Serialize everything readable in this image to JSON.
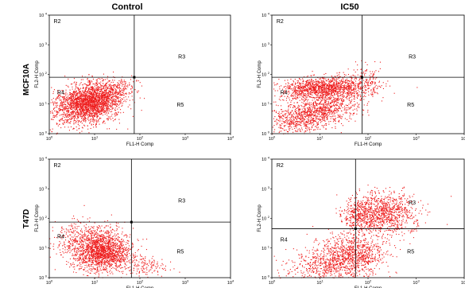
{
  "column_titles": [
    "Control",
    "IC50"
  ],
  "row_labels": [
    "MCF10A",
    "T47D"
  ],
  "chart_data": [
    {
      "type": "scatter",
      "row": "MCF10A",
      "column": "Control",
      "xlabel": "FL1-H Comp",
      "ylabel": "FL2-H Comp",
      "x_scale": "log",
      "y_scale": "log",
      "xlim": [
        1,
        10000
      ],
      "ylim": [
        1,
        10000
      ],
      "x_ticks": [
        {
          "value": 1,
          "base": "10",
          "exp": "0"
        },
        {
          "value": 10,
          "base": "10",
          "exp": "1"
        },
        {
          "value": 100,
          "base": "10",
          "exp": "2"
        },
        {
          "value": 1000,
          "base": "10",
          "exp": "3"
        },
        {
          "value": 10000,
          "base": "10",
          "exp": "4"
        }
      ],
      "y_ticks": [
        {
          "value": 1,
          "base": "10",
          "exp": "0"
        },
        {
          "value": 10,
          "base": "10",
          "exp": "1"
        },
        {
          "value": 100,
          "base": "10",
          "exp": "2"
        },
        {
          "value": 1000,
          "base": "10",
          "exp": "3"
        },
        {
          "value": 10000,
          "base": "10",
          "exp": "4"
        }
      ],
      "gate": {
        "x": 75,
        "y": 80
      },
      "regions": [
        {
          "label": "R2",
          "x": 1.25,
          "y": 6500
        },
        {
          "label": "R3",
          "x": 700,
          "y": 420
        },
        {
          "label": "R4",
          "x": 1.5,
          "y": 26
        },
        {
          "label": "R5",
          "x": 650,
          "y": 10
        }
      ],
      "clusters": [
        {
          "count": 1700,
          "cx": 8,
          "cy": 12,
          "sx": 0.35,
          "sy": 0.3,
          "rot": 0.9
        },
        {
          "count": 700,
          "cx": 4,
          "cy": 8,
          "sx": 0.45,
          "sy": 0.3,
          "rot": 0.4
        },
        {
          "count": 250,
          "cx": 25,
          "cy": 30,
          "sx": 0.25,
          "sy": 0.2,
          "rot": 0.6
        }
      ],
      "point_color": "#ee1c1c"
    },
    {
      "type": "scatter",
      "row": "MCF10A",
      "column": "IC50",
      "xlabel": "FL1-H Comp",
      "ylabel": "FL2-H Comp",
      "x_scale": "log",
      "y_scale": "log",
      "xlim": [
        1,
        10000
      ],
      "ylim": [
        1,
        10000
      ],
      "x_ticks": [
        {
          "value": 1,
          "base": "10",
          "exp": "0"
        },
        {
          "value": 10,
          "base": "10",
          "exp": "1"
        },
        {
          "value": 100,
          "base": "10",
          "exp": "2"
        },
        {
          "value": 1000,
          "base": "10",
          "exp": "3"
        },
        {
          "value": 10000,
          "base": "10",
          "exp": "4"
        }
      ],
      "y_ticks": [
        {
          "value": 1,
          "base": "10",
          "exp": "0"
        },
        {
          "value": 10,
          "base": "10",
          "exp": "1"
        },
        {
          "value": 100,
          "base": "10",
          "exp": "2"
        },
        {
          "value": 1000,
          "base": "10",
          "exp": "3"
        },
        {
          "value": 10000,
          "base": "10",
          "exp": "4"
        }
      ],
      "gate": {
        "x": 75,
        "y": 80
      },
      "regions": [
        {
          "label": "R2",
          "x": 1.25,
          "y": 6500
        },
        {
          "label": "R3",
          "x": 700,
          "y": 420
        },
        {
          "label": "R4",
          "x": 1.5,
          "y": 26
        },
        {
          "label": "R5",
          "x": 650,
          "y": 10
        }
      ],
      "clusters": [
        {
          "count": 1300,
          "cx": 12,
          "cy": 35,
          "sx": 0.45,
          "sy": 0.18,
          "rot": 0.1
        },
        {
          "count": 900,
          "cx": 10,
          "cy": 6,
          "sx": 0.45,
          "sy": 0.25,
          "rot": 0.5
        },
        {
          "count": 300,
          "cx": 3,
          "cy": 3,
          "sx": 0.3,
          "sy": 0.25,
          "rot": 0.3
        },
        {
          "count": 150,
          "cx": 90,
          "cy": 50,
          "sx": 0.2,
          "sy": 0.3,
          "rot": 0.0
        }
      ],
      "point_color": "#ee1c1c"
    },
    {
      "type": "scatter",
      "row": "T47D",
      "column": "Control",
      "xlabel": "FL1-H Comp",
      "ylabel": "FL2-H Comp",
      "x_scale": "log",
      "y_scale": "log",
      "xlim": [
        1,
        10000
      ],
      "ylim": [
        1,
        10000
      ],
      "x_ticks": [
        {
          "value": 1,
          "base": "10",
          "exp": "0"
        },
        {
          "value": 10,
          "base": "10",
          "exp": "1"
        },
        {
          "value": 100,
          "base": "10",
          "exp": "2"
        },
        {
          "value": 1000,
          "base": "10",
          "exp": "3"
        },
        {
          "value": 10000,
          "base": "10",
          "exp": "4"
        }
      ],
      "y_ticks": [
        {
          "value": 1,
          "base": "10",
          "exp": "0"
        },
        {
          "value": 10,
          "base": "10",
          "exp": "1"
        },
        {
          "value": 100,
          "base": "10",
          "exp": "2"
        },
        {
          "value": 1000,
          "base": "10",
          "exp": "3"
        },
        {
          "value": 10000,
          "base": "10",
          "exp": "4"
        }
      ],
      "gate": {
        "x": 65,
        "y": 75
      },
      "regions": [
        {
          "label": "R2",
          "x": 1.25,
          "y": 6500
        },
        {
          "label": "R3",
          "x": 700,
          "y": 420
        },
        {
          "label": "R4",
          "x": 1.5,
          "y": 26
        },
        {
          "label": "R5",
          "x": 650,
          "y": 8
        }
      ],
      "clusters": [
        {
          "count": 1500,
          "cx": 15,
          "cy": 7,
          "sx": 0.3,
          "sy": 0.3,
          "rot": 0.9
        },
        {
          "count": 500,
          "cx": 6,
          "cy": 20,
          "sx": 0.4,
          "sy": 0.35,
          "rot": 0.6
        },
        {
          "count": 150,
          "cx": 110,
          "cy": 2.5,
          "sx": 0.25,
          "sy": 0.2,
          "rot": 0.0
        }
      ],
      "point_color": "#ee1c1c"
    },
    {
      "type": "scatter",
      "row": "T47D",
      "column": "IC50",
      "xlabel": "FL1-H Comp",
      "ylabel": "FL2-H Comp",
      "x_scale": "log",
      "y_scale": "log",
      "xlim": [
        1,
        10000
      ],
      "ylim": [
        1,
        10000
      ],
      "x_ticks": [
        {
          "value": 1,
          "base": "10",
          "exp": "0"
        },
        {
          "value": 10,
          "base": "10",
          "exp": "1"
        },
        {
          "value": 100,
          "base": "10",
          "exp": "2"
        },
        {
          "value": 1000,
          "base": "10",
          "exp": "3"
        },
        {
          "value": 10000,
          "base": "10",
          "exp": "4"
        }
      ],
      "y_ticks": [
        {
          "value": 1,
          "base": "10",
          "exp": "0"
        },
        {
          "value": 10,
          "base": "10",
          "exp": "1"
        },
        {
          "value": 100,
          "base": "10",
          "exp": "2"
        },
        {
          "value": 1000,
          "base": "10",
          "exp": "3"
        },
        {
          "value": 10000,
          "base": "10",
          "exp": "4"
        }
      ],
      "gate": {
        "x": 55,
        "y": 45
      },
      "regions": [
        {
          "label": "R2",
          "x": 1.25,
          "y": 6500
        },
        {
          "label": "R3",
          "x": 700,
          "y": 350
        },
        {
          "label": "R4",
          "x": 1.5,
          "y": 20
        },
        {
          "label": "R5",
          "x": 650,
          "y": 8
        }
      ],
      "clusters": [
        {
          "count": 900,
          "cx": 45,
          "cy": 6,
          "sx": 0.35,
          "sy": 0.35,
          "rot": 0.8
        },
        {
          "count": 1000,
          "cx": 200,
          "cy": 150,
          "sx": 0.35,
          "sy": 0.35,
          "rot": 0.6
        },
        {
          "count": 400,
          "cx": 12,
          "cy": 2.5,
          "sx": 0.45,
          "sy": 0.25,
          "rot": 0.2
        },
        {
          "count": 250,
          "cx": 60,
          "cy": 120,
          "sx": 0.15,
          "sy": 0.3,
          "rot": 0.0
        }
      ],
      "point_color": "#ee1c1c"
    }
  ]
}
